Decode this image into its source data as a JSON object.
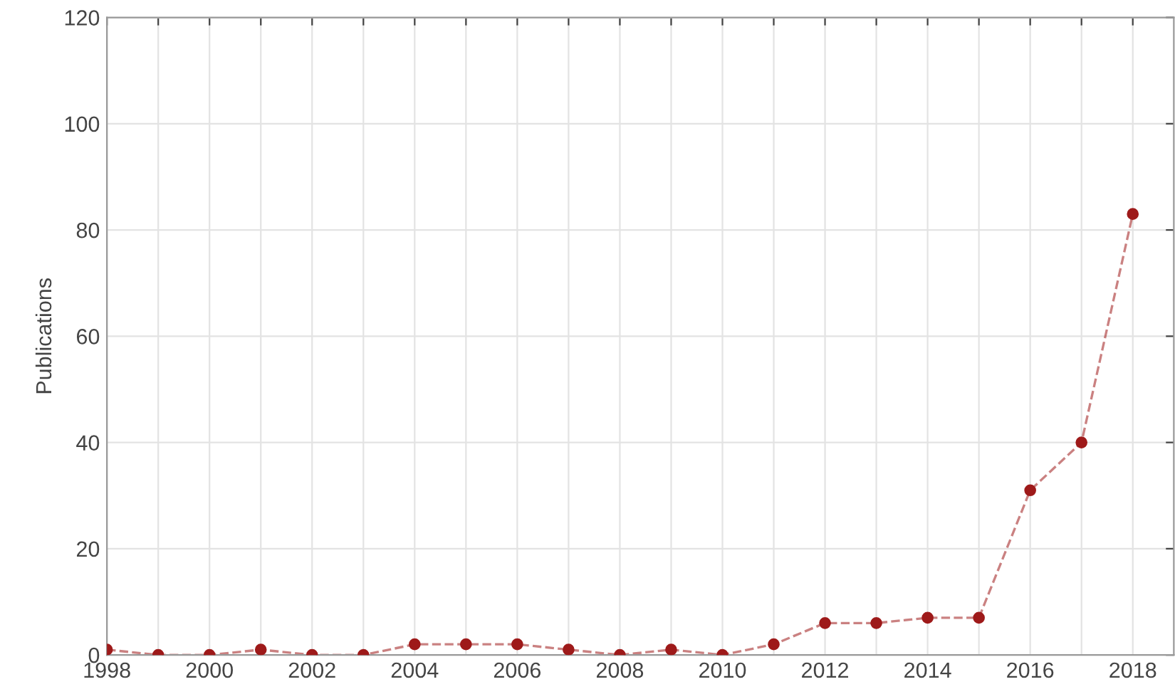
{
  "chart_data": {
    "type": "line",
    "ylabel": "Publications",
    "x": [
      1998,
      1999,
      2000,
      2001,
      2002,
      2003,
      2004,
      2005,
      2006,
      2007,
      2008,
      2009,
      2010,
      2011,
      2012,
      2013,
      2014,
      2015,
      2016,
      2017,
      2018
    ],
    "series": [
      {
        "color": "#9e1a1a",
        "values": [
          1,
          0,
          0,
          1,
          0,
          0,
          2,
          2,
          2,
          1,
          0,
          1,
          0,
          2,
          6,
          6,
          7,
          7,
          31,
          40,
          83
        ]
      }
    ],
    "xlim": [
      1998,
      2018.8
    ],
    "ylim": [
      0,
      120
    ],
    "xticks": [
      1998,
      {
        "value": 1999,
        "label": null
      },
      2000,
      {
        "value": 2001,
        "label": null
      },
      2002,
      {
        "value": 2003,
        "label": null
      },
      2004,
      {
        "value": 2005,
        "label": null
      },
      2006,
      {
        "value": 2007,
        "label": null
      },
      2008,
      {
        "value": 2009,
        "label": null
      },
      2010,
      {
        "value": 2011,
        "label": null
      },
      2012,
      {
        "value": 2013,
        "label": null
      },
      2014,
      {
        "value": 2015,
        "label": null
      },
      2016,
      {
        "value": 2017,
        "label": null
      },
      2018
    ],
    "yticks": [
      0,
      20,
      40,
      60,
      80,
      100,
      120
    ],
    "grid": true,
    "marker": "circle",
    "line_style": "dashed"
  }
}
